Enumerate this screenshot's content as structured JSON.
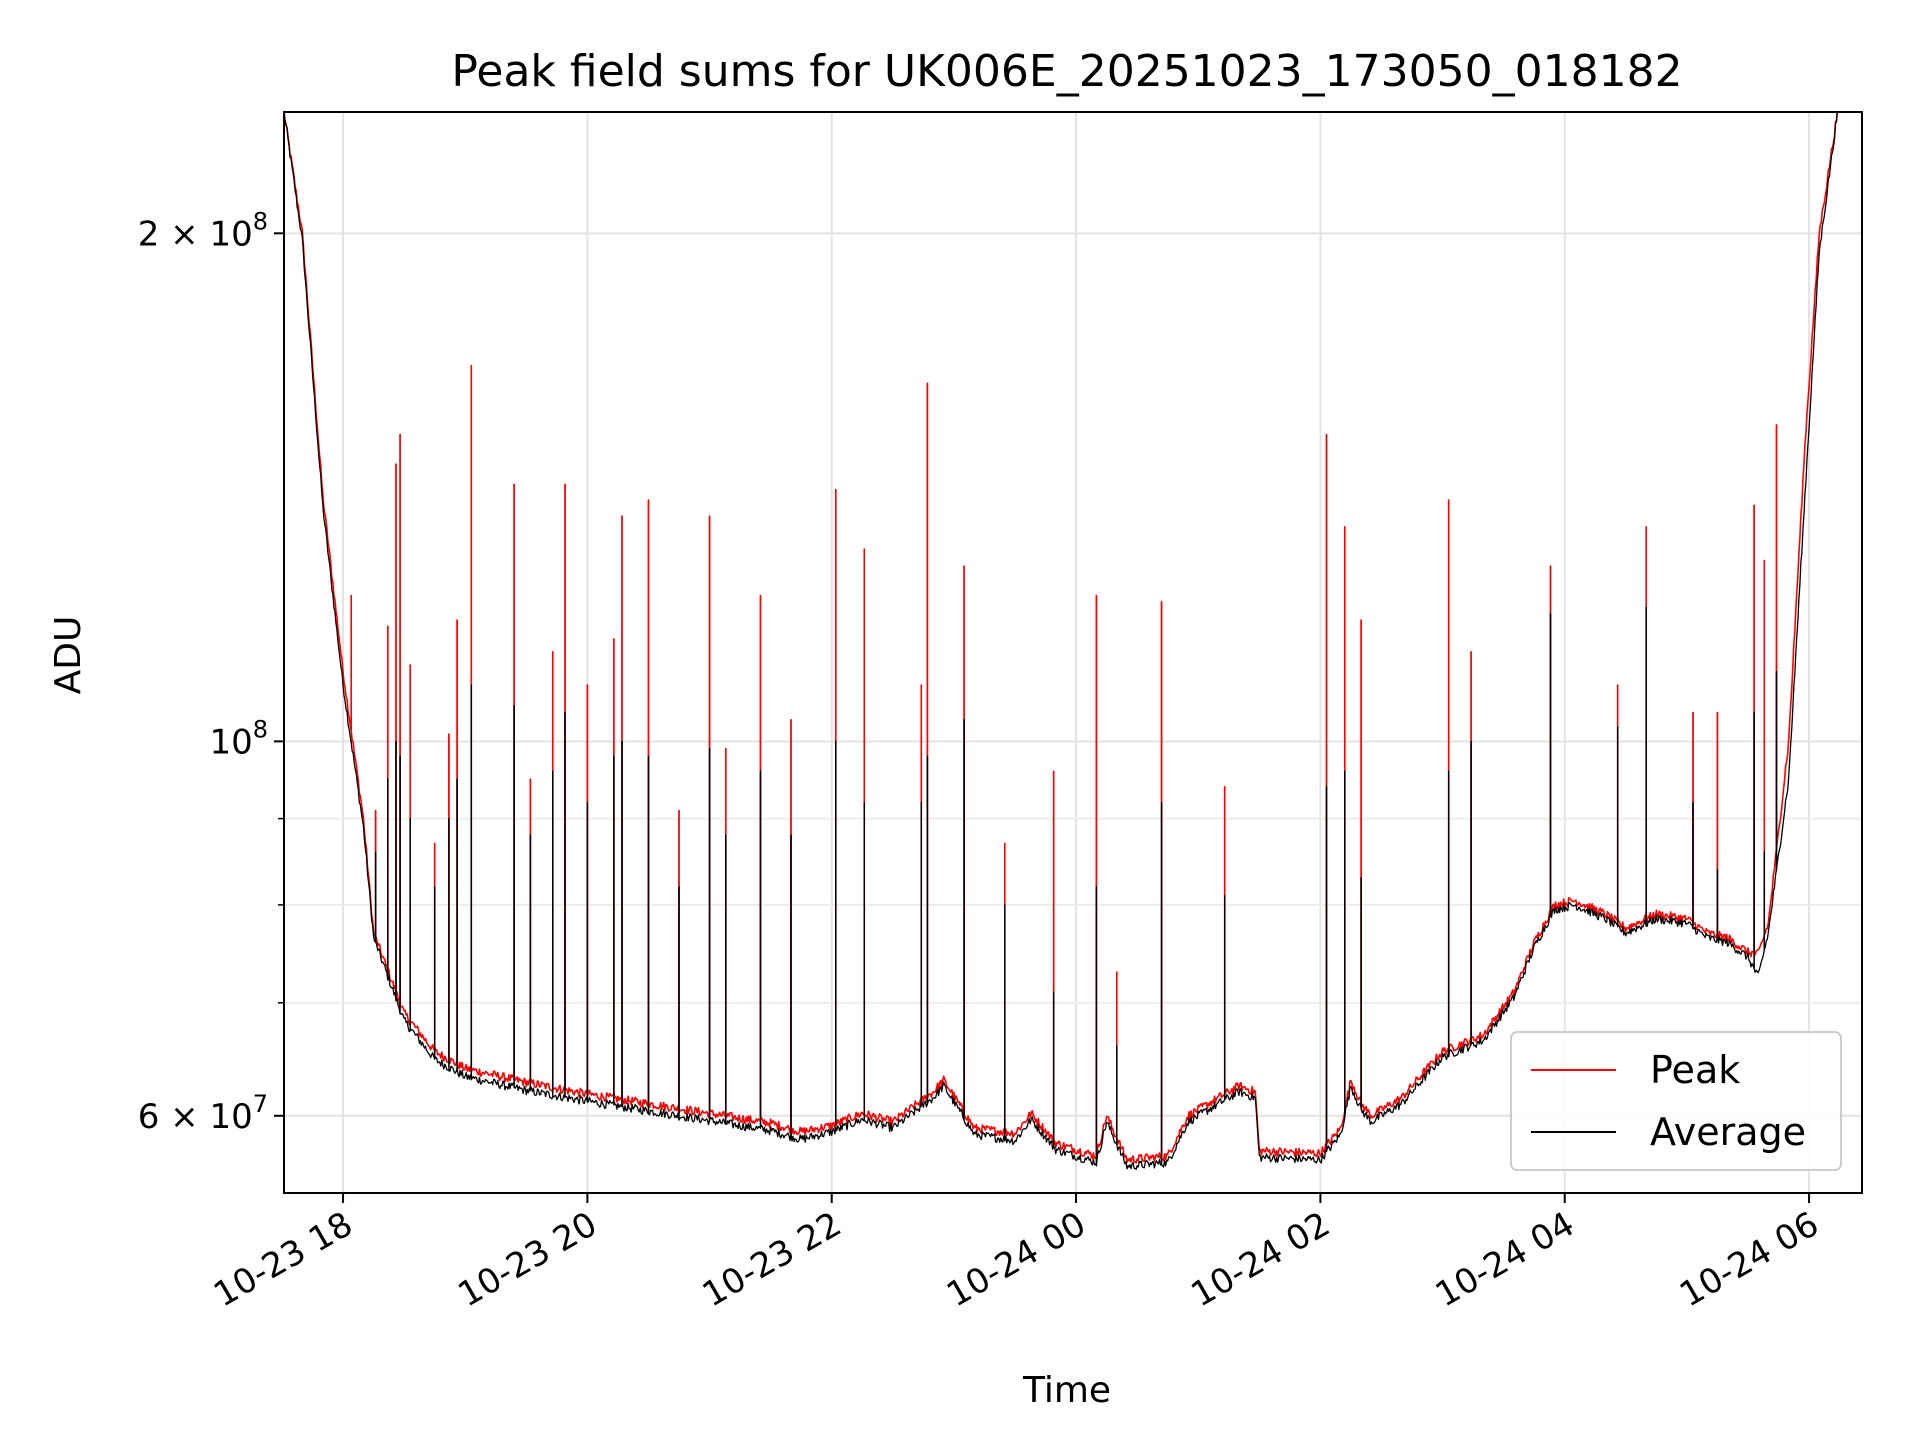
{
  "chart_data": {
    "type": "line",
    "title": "Peak field sums for UK006E_20251023_173050_018182",
    "xlabel": "Time",
    "ylabel": "ADU",
    "yscale": "log",
    "xlim": [
      "2025-10-23 17:31",
      "2025-10-24 06:26"
    ],
    "ylim": [
      54000000,
      236000000
    ],
    "x_ticks": [
      {
        "t": "2025-10-23 18:00",
        "label": "10-23 18"
      },
      {
        "t": "2025-10-23 20:00",
        "label": "10-23 20"
      },
      {
        "t": "2025-10-23 22:00",
        "label": "10-23 22"
      },
      {
        "t": "2025-10-24 00:00",
        "label": "10-24 00"
      },
      {
        "t": "2025-10-24 02:00",
        "label": "10-24 02"
      },
      {
        "t": "2025-10-24 04:00",
        "label": "10-24 04"
      },
      {
        "t": "2025-10-24 06:00",
        "label": "10-24 06"
      }
    ],
    "y_major_ticks": [
      {
        "value": 60000000,
        "base": "6",
        "exp": "7"
      },
      {
        "value": 100000000,
        "base": "",
        "exp": "8"
      },
      {
        "value": 200000000,
        "base": "2",
        "exp": "8"
      }
    ],
    "y_minor_ticks": [
      70000000,
      80000000,
      90000000
    ],
    "grid": true,
    "legend": "lower right",
    "series": [
      {
        "name": "Peak",
        "color": "#ff0000",
        "points": [
          [
            "2025-10-23 17:31",
            236000000
          ],
          [
            "2025-10-23 17:40",
            200000000
          ],
          [
            "2025-10-23 17:50",
            140000000
          ],
          [
            "2025-10-23 18:00",
            110000000
          ],
          [
            "2025-10-23 18:10",
            90000000
          ],
          [
            "2025-10-23 18:15",
            77000000
          ],
          [
            "2025-10-23 18:30",
            69000000
          ],
          [
            "2025-10-23 18:45",
            65500000
          ],
          [
            "2025-10-23 19:00",
            64000000
          ],
          [
            "2025-10-23 19:30",
            62800000
          ],
          [
            "2025-10-23 20:00",
            61800000
          ],
          [
            "2025-10-23 20:30",
            61000000
          ],
          [
            "2025-10-23 21:00",
            60200000
          ],
          [
            "2025-10-23 21:30",
            59400000
          ],
          [
            "2025-10-23 21:45",
            58700000
          ],
          [
            "2025-10-23 22:00",
            59200000
          ],
          [
            "2025-10-23 22:15",
            60200000
          ],
          [
            "2025-10-23 22:30",
            59500000
          ],
          [
            "2025-10-23 22:50",
            62000000
          ],
          [
            "2025-10-23 22:55",
            63000000
          ],
          [
            "2025-10-23 23:10",
            59000000
          ],
          [
            "2025-10-23 23:30",
            58600000
          ],
          [
            "2025-10-23 23:38",
            60200000
          ],
          [
            "2025-10-23 23:50",
            57800000
          ],
          [
            "2025-10-24 00:10",
            56800000
          ],
          [
            "2025-10-24 00:15",
            60000000
          ],
          [
            "2025-10-24 00:25",
            56500000
          ],
          [
            "2025-10-24 00:45",
            56800000
          ],
          [
            "2025-10-24 00:55",
            60000000
          ],
          [
            "2025-10-24 01:10",
            61500000
          ],
          [
            "2025-10-24 01:20",
            62500000
          ],
          [
            "2025-10-24 01:28",
            62000000
          ],
          [
            "2025-10-24 01:30",
            57200000
          ],
          [
            "2025-10-24 01:45",
            57100000
          ],
          [
            "2025-10-24 02:00",
            57000000
          ],
          [
            "2025-10-24 02:10",
            59000000
          ],
          [
            "2025-10-24 02:15",
            63000000
          ],
          [
            "2025-10-24 02:20",
            61000000
          ],
          [
            "2025-10-24 02:25",
            60000000
          ],
          [
            "2025-10-24 02:40",
            61500000
          ],
          [
            "2025-10-24 02:50",
            63500000
          ],
          [
            "2025-10-24 03:00",
            65500000
          ],
          [
            "2025-10-24 03:20",
            67000000
          ],
          [
            "2025-10-24 03:35",
            71000000
          ],
          [
            "2025-10-24 03:45",
            76000000
          ],
          [
            "2025-10-24 03:50",
            78000000
          ],
          [
            "2025-10-24 03:55",
            80000000
          ],
          [
            "2025-10-24 04:05",
            80500000
          ],
          [
            "2025-10-24 04:20",
            79000000
          ],
          [
            "2025-10-24 04:30",
            77500000
          ],
          [
            "2025-10-24 04:45",
            79000000
          ],
          [
            "2025-10-24 05:00",
            78500000
          ],
          [
            "2025-10-24 05:10",
            77000000
          ],
          [
            "2025-10-24 05:20",
            76500000
          ],
          [
            "2025-10-24 05:30",
            75000000
          ],
          [
            "2025-10-24 05:35",
            74800000
          ],
          [
            "2025-10-24 05:40",
            78000000
          ],
          [
            "2025-10-24 05:50",
            100000000
          ],
          [
            "2025-10-24 05:58",
            150000000
          ],
          [
            "2025-10-24 06:05",
            200000000
          ],
          [
            "2025-10-24 06:14",
            236000000
          ]
        ],
        "spikes": [
          [
            "2025-10-23 18:04",
            122000000
          ],
          [
            "2025-10-23 18:16",
            91000000
          ],
          [
            "2025-10-23 18:22",
            117000000
          ],
          [
            "2025-10-23 18:26",
            146000000
          ],
          [
            "2025-10-23 18:28",
            152000000
          ],
          [
            "2025-10-23 18:33",
            111000000
          ],
          [
            "2025-10-23 18:45",
            87000000
          ],
          [
            "2025-10-23 18:52",
            101000000
          ],
          [
            "2025-10-23 18:56",
            118000000
          ],
          [
            "2025-10-23 19:03",
            167000000
          ],
          [
            "2025-10-23 19:24",
            142000000
          ],
          [
            "2025-10-23 19:32",
            95000000
          ],
          [
            "2025-10-23 19:43",
            113000000
          ],
          [
            "2025-10-23 19:49",
            142000000
          ],
          [
            "2025-10-23 20:00",
            108000000
          ],
          [
            "2025-10-23 20:13",
            115000000
          ],
          [
            "2025-10-23 20:17",
            136000000
          ],
          [
            "2025-10-23 20:30",
            139000000
          ],
          [
            "2025-10-23 20:45",
            91000000
          ],
          [
            "2025-10-23 21:00",
            136000000
          ],
          [
            "2025-10-23 21:08",
            99000000
          ],
          [
            "2025-10-23 21:25",
            122000000
          ],
          [
            "2025-10-23 21:40",
            103000000
          ],
          [
            "2025-10-23 22:02",
            141000000
          ],
          [
            "2025-10-23 22:16",
            130000000
          ],
          [
            "2025-10-23 22:44",
            108000000
          ],
          [
            "2025-10-23 22:47",
            163000000
          ],
          [
            "2025-10-23 23:05",
            127000000
          ],
          [
            "2025-10-23 23:25",
            87000000
          ],
          [
            "2025-10-23 23:49",
            96000000
          ],
          [
            "2025-10-24 00:10",
            122000000
          ],
          [
            "2025-10-24 00:20",
            73000000
          ],
          [
            "2025-10-24 00:42",
            121000000
          ],
          [
            "2025-10-24 01:13",
            94000000
          ],
          [
            "2025-10-24 02:03",
            152000000
          ],
          [
            "2025-10-24 02:12",
            134000000
          ],
          [
            "2025-10-24 02:20",
            118000000
          ],
          [
            "2025-10-24 03:03",
            139000000
          ],
          [
            "2025-10-24 03:14",
            113000000
          ],
          [
            "2025-10-24 03:53",
            127000000
          ],
          [
            "2025-10-24 04:26",
            108000000
          ],
          [
            "2025-10-24 04:40",
            134000000
          ],
          [
            "2025-10-24 05:03",
            104000000
          ],
          [
            "2025-10-24 05:15",
            104000000
          ],
          [
            "2025-10-24 05:33",
            138000000
          ],
          [
            "2025-10-24 05:38",
            128000000
          ],
          [
            "2025-10-24 05:44",
            154000000
          ]
        ]
      },
      {
        "name": "Average",
        "color": "#000000",
        "points": [
          [
            "2025-10-23 17:31",
            236000000
          ],
          [
            "2025-10-23 17:40",
            198000000
          ],
          [
            "2025-10-23 17:50",
            138000000
          ],
          [
            "2025-10-23 18:00",
            108000000
          ],
          [
            "2025-10-23 18:10",
            89000000
          ],
          [
            "2025-10-23 18:15",
            76500000
          ],
          [
            "2025-10-23 18:30",
            68300000
          ],
          [
            "2025-10-23 18:45",
            64800000
          ],
          [
            "2025-10-23 19:00",
            63300000
          ],
          [
            "2025-10-23 19:30",
            62100000
          ],
          [
            "2025-10-23 20:00",
            61200000
          ],
          [
            "2025-10-23 20:30",
            60400000
          ],
          [
            "2025-10-23 21:00",
            59600000
          ],
          [
            "2025-10-23 21:30",
            58800000
          ],
          [
            "2025-10-23 21:45",
            58100000
          ],
          [
            "2025-10-23 22:00",
            58700000
          ],
          [
            "2025-10-23 22:15",
            59700000
          ],
          [
            "2025-10-23 22:30",
            59000000
          ],
          [
            "2025-10-23 22:50",
            61500000
          ],
          [
            "2025-10-23 22:55",
            62500000
          ],
          [
            "2025-10-23 23:10",
            58500000
          ],
          [
            "2025-10-23 23:30",
            58000000
          ],
          [
            "2025-10-23 23:38",
            59700000
          ],
          [
            "2025-10-23 23:50",
            57300000
          ],
          [
            "2025-10-24 00:10",
            56300000
          ],
          [
            "2025-10-24 00:15",
            59500000
          ],
          [
            "2025-10-24 00:25",
            56000000
          ],
          [
            "2025-10-24 00:45",
            56300000
          ],
          [
            "2025-10-24 00:55",
            59500000
          ],
          [
            "2025-10-24 01:10",
            61000000
          ],
          [
            "2025-10-24 01:20",
            62000000
          ],
          [
            "2025-10-24 01:28",
            61500000
          ],
          [
            "2025-10-24 01:30",
            56700000
          ],
          [
            "2025-10-24 01:45",
            56600000
          ],
          [
            "2025-10-24 02:00",
            56500000
          ],
          [
            "2025-10-24 02:10",
            58500000
          ],
          [
            "2025-10-24 02:15",
            62500000
          ],
          [
            "2025-10-24 02:20",
            60500000
          ],
          [
            "2025-10-24 02:25",
            59500000
          ],
          [
            "2025-10-24 02:40",
            61000000
          ],
          [
            "2025-10-24 02:50",
            63000000
          ],
          [
            "2025-10-24 03:00",
            65000000
          ],
          [
            "2025-10-24 03:20",
            66500000
          ],
          [
            "2025-10-24 03:35",
            70500000
          ],
          [
            "2025-10-24 03:45",
            75500000
          ],
          [
            "2025-10-24 03:50",
            77500000
          ],
          [
            "2025-10-24 03:55",
            79500000
          ],
          [
            "2025-10-24 04:05",
            80000000
          ],
          [
            "2025-10-24 04:20",
            78500000
          ],
          [
            "2025-10-24 04:30",
            77000000
          ],
          [
            "2025-10-24 04:45",
            78500000
          ],
          [
            "2025-10-24 05:00",
            78000000
          ],
          [
            "2025-10-24 05:10",
            76500000
          ],
          [
            "2025-10-24 05:20",
            76000000
          ],
          [
            "2025-10-24 05:30",
            74500000
          ],
          [
            "2025-10-24 05:35",
            72500000
          ],
          [
            "2025-10-24 05:40",
            77000000
          ],
          [
            "2025-10-24 05:50",
            95000000
          ],
          [
            "2025-10-24 05:58",
            140000000
          ],
          [
            "2025-10-24 06:05",
            195000000
          ],
          [
            "2025-10-24 06:14",
            236000000
          ]
        ],
        "spikes": [
          [
            "2025-10-23 18:04",
            100000000
          ],
          [
            "2025-10-23 18:16",
            86000000
          ],
          [
            "2025-10-23 18:22",
            95000000
          ],
          [
            "2025-10-23 18:26",
            100000000
          ],
          [
            "2025-10-23 18:28",
            98000000
          ],
          [
            "2025-10-23 18:33",
            90000000
          ],
          [
            "2025-10-23 18:45",
            82000000
          ],
          [
            "2025-10-23 18:52",
            90000000
          ],
          [
            "2025-10-23 18:56",
            95000000
          ],
          [
            "2025-10-23 19:03",
            108000000
          ],
          [
            "2025-10-23 19:24",
            105000000
          ],
          [
            "2025-10-23 19:32",
            88000000
          ],
          [
            "2025-10-23 19:43",
            96000000
          ],
          [
            "2025-10-23 19:49",
            104000000
          ],
          [
            "2025-10-23 20:00",
            92000000
          ],
          [
            "2025-10-23 20:13",
            98000000
          ],
          [
            "2025-10-23 20:17",
            100000000
          ],
          [
            "2025-10-23 20:30",
            98000000
          ],
          [
            "2025-10-23 20:45",
            82000000
          ],
          [
            "2025-10-23 21:00",
            99000000
          ],
          [
            "2025-10-23 21:08",
            88000000
          ],
          [
            "2025-10-23 21:25",
            96000000
          ],
          [
            "2025-10-23 21:40",
            88000000
          ],
          [
            "2025-10-23 22:02",
            100000000
          ],
          [
            "2025-10-23 22:16",
            92000000
          ],
          [
            "2025-10-23 22:44",
            92000000
          ],
          [
            "2025-10-23 22:47",
            98000000
          ],
          [
            "2025-10-23 23:05",
            103000000
          ],
          [
            "2025-10-23 23:25",
            80000000
          ],
          [
            "2025-10-23 23:49",
            71000000
          ],
          [
            "2025-10-24 00:10",
            82000000
          ],
          [
            "2025-10-24 00:20",
            66000000
          ],
          [
            "2025-10-24 00:42",
            92000000
          ],
          [
            "2025-10-24 01:13",
            81000000
          ],
          [
            "2025-10-24 02:03",
            94000000
          ],
          [
            "2025-10-24 02:12",
            96000000
          ],
          [
            "2025-10-24 02:20",
            83000000
          ],
          [
            "2025-10-24 03:03",
            96000000
          ],
          [
            "2025-10-24 03:14",
            100000000
          ],
          [
            "2025-10-24 03:53",
            119000000
          ],
          [
            "2025-10-24 04:26",
            102000000
          ],
          [
            "2025-10-24 04:40",
            120000000
          ],
          [
            "2025-10-24 05:03",
            92000000
          ],
          [
            "2025-10-24 05:15",
            84000000
          ],
          [
            "2025-10-24 05:33",
            104000000
          ],
          [
            "2025-10-24 05:38",
            86000000
          ],
          [
            "2025-10-24 05:44",
            110000000
          ]
        ]
      }
    ]
  }
}
